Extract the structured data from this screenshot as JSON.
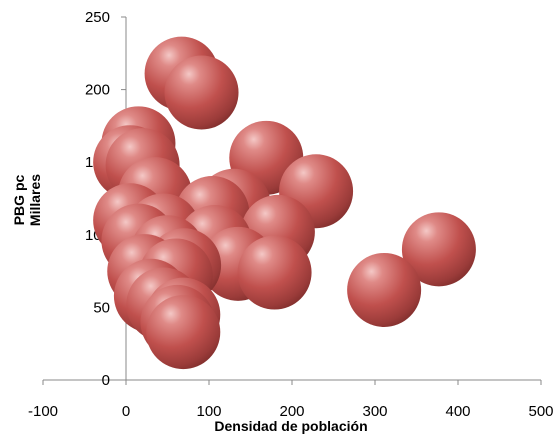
{
  "chart_data": {
    "type": "bubble",
    "xlabel": "Densidad de población",
    "ylabel": "PBG pc",
    "ylabel_unit": "Millares",
    "xlim": [
      -100,
      500
    ],
    "ylim": [
      0,
      250
    ],
    "xticks": [
      -100,
      0,
      100,
      200,
      300,
      400,
      500
    ],
    "xtick_labels": [
      "-100",
      "0",
      "100",
      "200",
      "300",
      "400",
      "500"
    ],
    "yticks": [
      0,
      50,
      100,
      150,
      200,
      250
    ],
    "ytick_labels": [
      "0",
      "50",
      "100",
      "150",
      "200",
      "250"
    ],
    "grid": false,
    "legend": "none",
    "bubble_color": "#c0504d",
    "points": [
      {
        "x": 377,
        "y": 90
      },
      {
        "x": 311,
        "y": 62
      },
      {
        "x": 229,
        "y": 130
      },
      {
        "x": 169,
        "y": 153
      },
      {
        "x": 183,
        "y": 102
      },
      {
        "x": 179,
        "y": 74
      },
      {
        "x": 130,
        "y": 120
      },
      {
        "x": 135,
        "y": 80
      },
      {
        "x": 104,
        "y": 115
      },
      {
        "x": 107,
        "y": 95
      },
      {
        "x": 5,
        "y": 150
      },
      {
        "x": 15,
        "y": 163
      },
      {
        "x": 20,
        "y": 148
      },
      {
        "x": 35,
        "y": 128
      },
      {
        "x": 5,
        "y": 110
      },
      {
        "x": 15,
        "y": 96
      },
      {
        "x": 22,
        "y": 75
      },
      {
        "x": 30,
        "y": 58
      },
      {
        "x": 45,
        "y": 103
      },
      {
        "x": 50,
        "y": 88
      },
      {
        "x": 60,
        "y": 72
      },
      {
        "x": 45,
        "y": 52
      },
      {
        "x": 62,
        "y": 40
      },
      {
        "x": 70,
        "y": 79
      },
      {
        "x": 69,
        "y": 45
      },
      {
        "x": 69,
        "y": 33
      },
      {
        "x": 67,
        "y": 211
      },
      {
        "x": 91,
        "y": 198
      }
    ]
  }
}
